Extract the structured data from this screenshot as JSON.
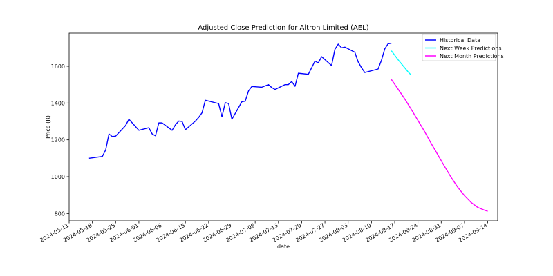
{
  "chart_data": {
    "type": "line",
    "title": "Adjusted Close Prediction for Altron Limited (AEL)",
    "xlabel": "date",
    "ylabel": "Price (R)",
    "xlim": [
      "2024-05-11",
      "2024-09-17"
    ],
    "ylim": [
      760,
      1780
    ],
    "x_ticks": [
      "2024-05-11",
      "2024-05-18",
      "2024-05-25",
      "2024-06-01",
      "2024-06-08",
      "2024-06-15",
      "2024-06-22",
      "2024-06-29",
      "2024-07-06",
      "2024-07-13",
      "2024-07-20",
      "2024-07-27",
      "2024-08-03",
      "2024-08-10",
      "2024-08-17",
      "2024-08-24",
      "2024-08-31",
      "2024-09-07",
      "2024-09-14"
    ],
    "y_ticks": [
      800,
      1000,
      1200,
      1400,
      1600
    ],
    "grid": false,
    "legend_position": "top-right",
    "series": [
      {
        "name": "Historical Data",
        "color": "#0000ff",
        "points": [
          [
            "2024-05-17",
            1100
          ],
          [
            "2024-05-21",
            1110
          ],
          [
            "2024-05-22",
            1145
          ],
          [
            "2024-05-23",
            1232
          ],
          [
            "2024-05-24",
            1218
          ],
          [
            "2024-05-25",
            1220
          ],
          [
            "2024-05-28",
            1278
          ],
          [
            "2024-05-29",
            1312
          ],
          [
            "2024-05-30",
            1292
          ],
          [
            "2024-06-01",
            1252
          ],
          [
            "2024-06-04",
            1266
          ],
          [
            "2024-06-05",
            1232
          ],
          [
            "2024-06-06",
            1222
          ],
          [
            "2024-06-07",
            1292
          ],
          [
            "2024-06-08",
            1292
          ],
          [
            "2024-06-11",
            1252
          ],
          [
            "2024-06-12",
            1282
          ],
          [
            "2024-06-13",
            1302
          ],
          [
            "2024-06-14",
            1300
          ],
          [
            "2024-06-15",
            1255
          ],
          [
            "2024-06-18",
            1302
          ],
          [
            "2024-06-19",
            1322
          ],
          [
            "2024-06-20",
            1347
          ],
          [
            "2024-06-21",
            1415
          ],
          [
            "2024-06-25",
            1397
          ],
          [
            "2024-06-26",
            1325
          ],
          [
            "2024-06-27",
            1402
          ],
          [
            "2024-06-28",
            1397
          ],
          [
            "2024-06-29",
            1312
          ],
          [
            "2024-07-02",
            1407
          ],
          [
            "2024-07-03",
            1410
          ],
          [
            "2024-07-04",
            1466
          ],
          [
            "2024-07-05",
            1490
          ],
          [
            "2024-07-08",
            1486
          ],
          [
            "2024-07-10",
            1500
          ],
          [
            "2024-07-11",
            1484
          ],
          [
            "2024-07-12",
            1474
          ],
          [
            "2024-07-15",
            1500
          ],
          [
            "2024-07-16",
            1500
          ],
          [
            "2024-07-17",
            1517
          ],
          [
            "2024-07-18",
            1491
          ],
          [
            "2024-07-19",
            1562
          ],
          [
            "2024-07-22",
            1556
          ],
          [
            "2024-07-24",
            1628
          ],
          [
            "2024-07-25",
            1618
          ],
          [
            "2024-07-26",
            1652
          ],
          [
            "2024-07-29",
            1604
          ],
          [
            "2024-07-30",
            1692
          ],
          [
            "2024-07-31",
            1720
          ],
          [
            "2024-08-01",
            1700
          ],
          [
            "2024-08-02",
            1704
          ],
          [
            "2024-08-05",
            1676
          ],
          [
            "2024-08-06",
            1624
          ],
          [
            "2024-08-07",
            1592
          ],
          [
            "2024-08-08",
            1566
          ],
          [
            "2024-08-12",
            1585
          ],
          [
            "2024-08-13",
            1632
          ],
          [
            "2024-08-14",
            1694
          ],
          [
            "2024-08-15",
            1722
          ],
          [
            "2024-08-16",
            1725
          ]
        ]
      },
      {
        "name": "Next Week Predictions",
        "color": "#00ffff",
        "points": [
          [
            "2024-08-16",
            1684
          ],
          [
            "2024-08-17",
            1660
          ],
          [
            "2024-08-18",
            1636
          ],
          [
            "2024-08-19",
            1614
          ],
          [
            "2024-08-20",
            1592
          ],
          [
            "2024-08-21",
            1570
          ],
          [
            "2024-08-22",
            1551
          ]
        ]
      },
      {
        "name": "Next Month Predictions",
        "color": "#ff00ff",
        "points": [
          [
            "2024-08-16",
            1528
          ],
          [
            "2024-08-18",
            1476
          ],
          [
            "2024-08-20",
            1423
          ],
          [
            "2024-08-22",
            1365
          ],
          [
            "2024-08-24",
            1305
          ],
          [
            "2024-08-26",
            1245
          ],
          [
            "2024-08-28",
            1180
          ],
          [
            "2024-08-30",
            1118
          ],
          [
            "2024-09-01",
            1056
          ],
          [
            "2024-09-03",
            996
          ],
          [
            "2024-09-05",
            942
          ],
          [
            "2024-09-07",
            897
          ],
          [
            "2024-09-09",
            860
          ],
          [
            "2024-09-11",
            833
          ],
          [
            "2024-09-13",
            818
          ],
          [
            "2024-09-14",
            812
          ]
        ]
      }
    ]
  }
}
